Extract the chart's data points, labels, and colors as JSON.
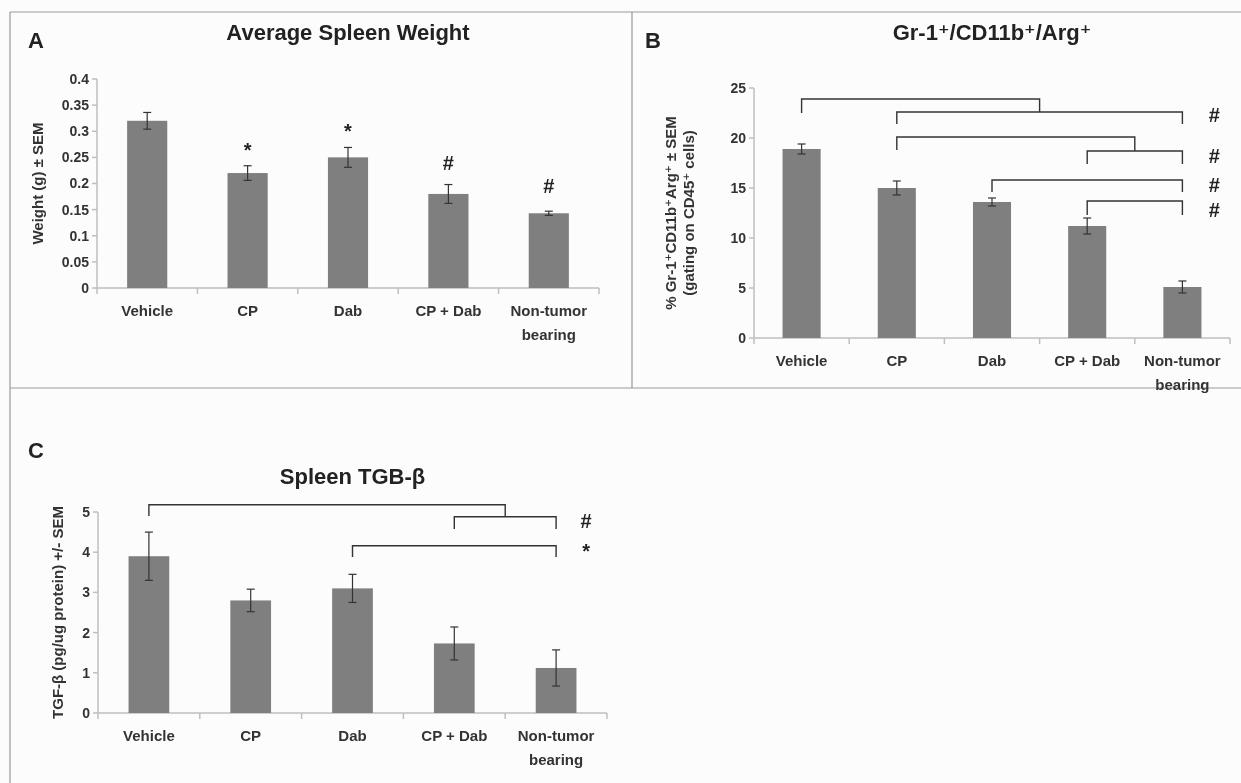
{
  "chart_data": [
    {
      "type": "bar",
      "title": "Average Spleen Weight",
      "ylabel": "Weight (g) ± SEM",
      "categories": [
        "Vehicle",
        "CP",
        "Dab",
        "CP + Dab",
        "Non-tumor bearing"
      ],
      "values": [
        0.32,
        0.22,
        0.25,
        0.18,
        0.143
      ],
      "errors": [
        0.016,
        0.014,
        0.019,
        0.018,
        0.004
      ],
      "color": "#7f7f7f",
      "ylim": [
        0,
        0.4
      ],
      "yticks": [
        0,
        0.05,
        0.1,
        0.15,
        0.2,
        0.25,
        0.3,
        0.35,
        0.4
      ],
      "grid": false,
      "annotations": [
        "A",
        "*",
        "*",
        "#",
        "#"
      ]
    },
    {
      "type": "bar",
      "title": "Gr-1⁺/CD11b⁺/Arg⁺",
      "ylabel": "% Gr-1⁺CD11b⁺Arg⁺ ± SEM\n(gating on CD45⁺ cells)",
      "categories": [
        "Vehicle",
        "CP",
        "Dab",
        "CP + Dab",
        "Non-tumor bearing"
      ],
      "values": [
        18.9,
        15.0,
        13.6,
        11.2,
        5.1
      ],
      "errors": [
        0.5,
        0.7,
        0.4,
        0.8,
        0.6
      ],
      "color": "#7f7f7f",
      "ylim": [
        0,
        25
      ],
      "yticks": [
        0,
        5,
        10,
        15,
        20,
        25
      ],
      "grid": false,
      "annotations": [
        "B",
        "#",
        "#",
        "#",
        "#"
      ]
    },
    {
      "type": "bar",
      "title": "Spleen TGB-β",
      "ylabel": "TGF-β (pg/ug protein) +/- SEM",
      "categories": [
        "Vehicle",
        "CP",
        "Dab",
        "CP + Dab",
        "Non-tumor bearing"
      ],
      "values": [
        3.9,
        2.8,
        3.1,
        1.73,
        1.12
      ],
      "errors": [
        0.6,
        0.28,
        0.35,
        0.41,
        0.45
      ],
      "color": "#7f7f7f",
      "ylim": [
        0,
        5
      ],
      "yticks": [
        0,
        1,
        2,
        3,
        4,
        5
      ],
      "grid": false,
      "annotations": [
        "C",
        "#",
        "*"
      ]
    }
  ]
}
